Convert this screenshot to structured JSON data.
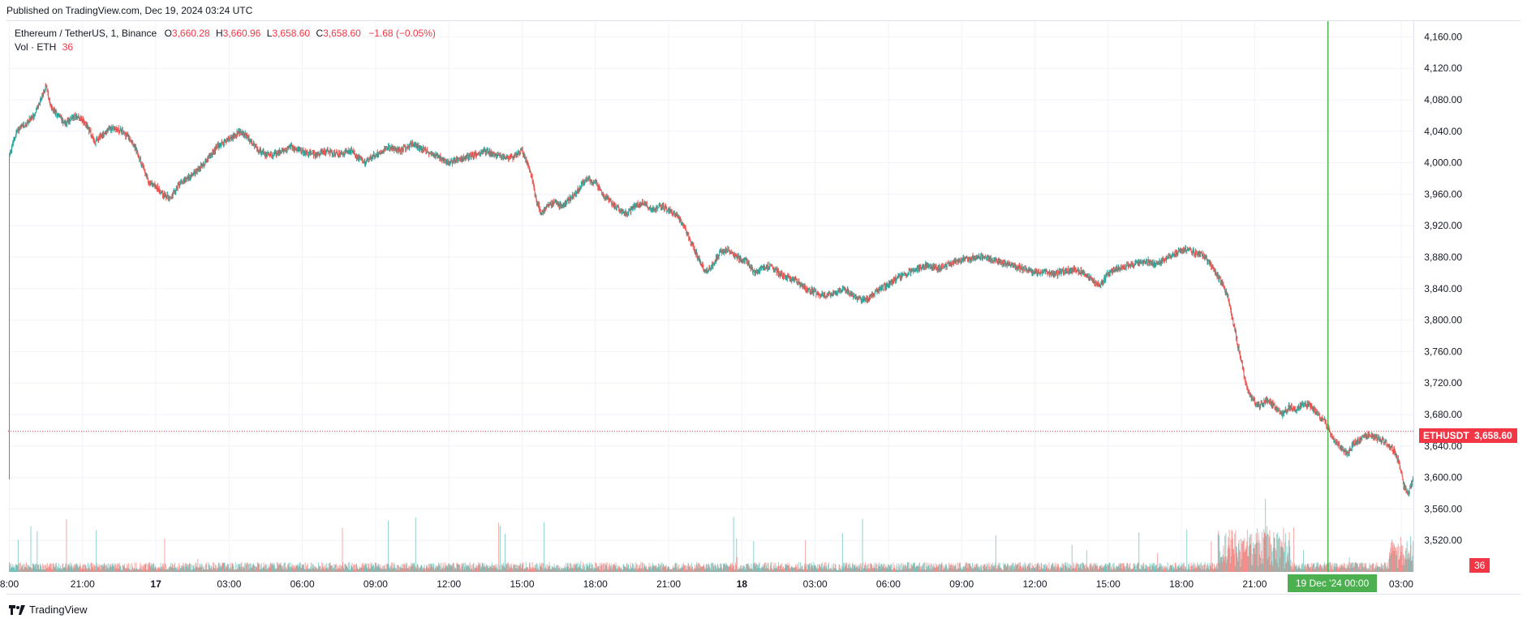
{
  "header": {
    "published": "Published on TradingView.com, Dec 19, 2024 03:24 UTC"
  },
  "legend": {
    "symbol": "Ethereum / TetherUS, 1, Binance",
    "o_label": "O",
    "o": "3,660.28",
    "h_label": "H",
    "h": "3,660.96",
    "l_label": "L",
    "l": "3,658.60",
    "c_label": "C",
    "c": "3,658.60",
    "change": "−1.68 (−0.05%)",
    "vol_label": "Vol · ETH",
    "vol": "36"
  },
  "last_price": {
    "ticker": "ETHUSDT",
    "price": "3,658.60",
    "volume_tag": "36"
  },
  "crosshair": {
    "time_label": "19 Dec '24  00:00"
  },
  "footer": {
    "brand": "TradingView"
  },
  "colors": {
    "up": "#26a69a",
    "down": "#ef5350",
    "accent": "#4caf50",
    "last": "#f23645"
  },
  "chart_data": {
    "type": "candlestick",
    "symbol": "Ethereum / TetherUS",
    "interval": "1",
    "exchange": "Binance",
    "ylim": [
      3480,
      4180
    ],
    "y_ticks": [
      {
        "value": 4160,
        "label": "4,160.00"
      },
      {
        "value": 4120,
        "label": "4,120.00"
      },
      {
        "value": 4080,
        "label": "4,080.00"
      },
      {
        "value": 4040,
        "label": "4,040.00"
      },
      {
        "value": 4000,
        "label": "4,000.00"
      },
      {
        "value": 3960,
        "label": "3,960.00"
      },
      {
        "value": 3920,
        "label": "3,920.00"
      },
      {
        "value": 3880,
        "label": "3,880.00"
      },
      {
        "value": 3840,
        "label": "3,840.00"
      },
      {
        "value": 3800,
        "label": "3,800.00"
      },
      {
        "value": 3760,
        "label": "3,760.00"
      },
      {
        "value": 3720,
        "label": "3,720.00"
      },
      {
        "value": 3680,
        "label": "3,680.00"
      },
      {
        "value": 3640,
        "label": "3,640.00"
      },
      {
        "value": 3600,
        "label": "3,600.00"
      },
      {
        "value": 3560,
        "label": "3,560.00"
      },
      {
        "value": 3520,
        "label": "3,520.00"
      }
    ],
    "x_ticks": [
      "8:00",
      "21:00",
      "17",
      "03:00",
      "06:00",
      "09:00",
      "12:00",
      "15:00",
      "18:00",
      "21:00",
      "18",
      "03:00",
      "06:00",
      "09:00",
      "12:00",
      "15:00",
      "18:00",
      "21:00",
      "00:00",
      "03:00"
    ],
    "x_tick_hours": [
      18,
      21,
      24,
      27,
      30,
      33,
      36,
      39,
      42,
      45,
      48,
      51,
      54,
      57,
      60,
      63,
      66,
      69,
      72,
      75
    ],
    "x_range_hours": [
      17.95,
      75.5
    ],
    "price_path": [
      [
        18.0,
        4010
      ],
      [
        18.3,
        4040
      ],
      [
        18.7,
        4050
      ],
      [
        19.0,
        4060
      ],
      [
        19.3,
        4080
      ],
      [
        19.5,
        4100
      ],
      [
        19.7,
        4070
      ],
      [
        20.0,
        4060
      ],
      [
        20.3,
        4050
      ],
      [
        20.7,
        4060
      ],
      [
        21.0,
        4055
      ],
      [
        21.3,
        4040
      ],
      [
        21.5,
        4025
      ],
      [
        21.8,
        4035
      ],
      [
        22.2,
        4045
      ],
      [
        22.6,
        4040
      ],
      [
        23.0,
        4030
      ],
      [
        23.4,
        4000
      ],
      [
        23.7,
        3975
      ],
      [
        24.0,
        3970
      ],
      [
        24.3,
        3960
      ],
      [
        24.6,
        3955
      ],
      [
        25.0,
        3975
      ],
      [
        25.5,
        3985
      ],
      [
        26.0,
        4000
      ],
      [
        26.5,
        4020
      ],
      [
        27.0,
        4030
      ],
      [
        27.5,
        4040
      ],
      [
        27.8,
        4030
      ],
      [
        28.2,
        4015
      ],
      [
        28.6,
        4010
      ],
      [
        29.0,
        4012
      ],
      [
        29.5,
        4020
      ],
      [
        30.0,
        4015
      ],
      [
        30.5,
        4010
      ],
      [
        31.0,
        4015
      ],
      [
        31.5,
        4010
      ],
      [
        32.0,
        4015
      ],
      [
        32.5,
        4000
      ],
      [
        33.0,
        4010
      ],
      [
        33.5,
        4020
      ],
      [
        34.0,
        4015
      ],
      [
        34.5,
        4025
      ],
      [
        35.0,
        4015
      ],
      [
        35.5,
        4010
      ],
      [
        36.0,
        4000
      ],
      [
        36.5,
        4005
      ],
      [
        37.0,
        4010
      ],
      [
        37.5,
        4015
      ],
      [
        38.0,
        4010
      ],
      [
        38.5,
        4005
      ],
      [
        39.0,
        4015
      ],
      [
        39.2,
        4000
      ],
      [
        39.4,
        3980
      ],
      [
        39.6,
        3950
      ],
      [
        39.8,
        3935
      ],
      [
        40.0,
        3945
      ],
      [
        40.3,
        3950
      ],
      [
        40.6,
        3945
      ],
      [
        41.0,
        3955
      ],
      [
        41.3,
        3965
      ],
      [
        41.6,
        3980
      ],
      [
        42.0,
        3975
      ],
      [
        42.3,
        3960
      ],
      [
        42.6,
        3950
      ],
      [
        43.0,
        3940
      ],
      [
        43.3,
        3935
      ],
      [
        43.6,
        3945
      ],
      [
        44.0,
        3950
      ],
      [
        44.3,
        3940
      ],
      [
        44.7,
        3945
      ],
      [
        45.0,
        3940
      ],
      [
        45.3,
        3935
      ],
      [
        45.6,
        3920
      ],
      [
        45.9,
        3900
      ],
      [
        46.2,
        3880
      ],
      [
        46.5,
        3860
      ],
      [
        46.8,
        3870
      ],
      [
        47.1,
        3885
      ],
      [
        47.4,
        3890
      ],
      [
        47.8,
        3880
      ],
      [
        48.2,
        3875
      ],
      [
        48.5,
        3860
      ],
      [
        48.8,
        3865
      ],
      [
        49.2,
        3870
      ],
      [
        49.5,
        3860
      ],
      [
        49.8,
        3855
      ],
      [
        50.2,
        3850
      ],
      [
        50.6,
        3840
      ],
      [
        51.0,
        3835
      ],
      [
        51.4,
        3830
      ],
      [
        51.8,
        3835
      ],
      [
        52.2,
        3840
      ],
      [
        52.6,
        3830
      ],
      [
        53.0,
        3825
      ],
      [
        53.3,
        3830
      ],
      [
        53.7,
        3840
      ],
      [
        54.0,
        3845
      ],
      [
        54.4,
        3855
      ],
      [
        54.8,
        3860
      ],
      [
        55.2,
        3865
      ],
      [
        55.6,
        3870
      ],
      [
        56.0,
        3865
      ],
      [
        56.4,
        3870
      ],
      [
        56.8,
        3875
      ],
      [
        57.2,
        3878
      ],
      [
        57.6,
        3880
      ],
      [
        58.0,
        3880
      ],
      [
        58.4,
        3876
      ],
      [
        58.8,
        3872
      ],
      [
        59.2,
        3868
      ],
      [
        59.6,
        3865
      ],
      [
        60.0,
        3860
      ],
      [
        60.4,
        3862
      ],
      [
        60.8,
        3858
      ],
      [
        61.2,
        3862
      ],
      [
        61.6,
        3864
      ],
      [
        62.0,
        3860
      ],
      [
        62.4,
        3850
      ],
      [
        62.7,
        3845
      ],
      [
        63.0,
        3860
      ],
      [
        63.4,
        3865
      ],
      [
        63.8,
        3870
      ],
      [
        64.2,
        3872
      ],
      [
        64.6,
        3875
      ],
      [
        65.0,
        3870
      ],
      [
        65.4,
        3880
      ],
      [
        65.8,
        3885
      ],
      [
        66.2,
        3890
      ],
      [
        66.6,
        3885
      ],
      [
        67.0,
        3880
      ],
      [
        67.3,
        3865
      ],
      [
        67.6,
        3850
      ],
      [
        67.9,
        3830
      ],
      [
        68.1,
        3800
      ],
      [
        68.3,
        3770
      ],
      [
        68.5,
        3740
      ],
      [
        68.7,
        3710
      ],
      [
        68.9,
        3700
      ],
      [
        69.2,
        3690
      ],
      [
        69.5,
        3700
      ],
      [
        69.8,
        3690
      ],
      [
        70.1,
        3680
      ],
      [
        70.4,
        3690
      ],
      [
        70.7,
        3685
      ],
      [
        71.0,
        3695
      ],
      [
        71.3,
        3690
      ],
      [
        71.6,
        3680
      ],
      [
        71.9,
        3670
      ],
      [
        72.2,
        3650
      ],
      [
        72.5,
        3640
      ],
      [
        72.8,
        3630
      ],
      [
        73.1,
        3645
      ],
      [
        73.4,
        3650
      ],
      [
        73.7,
        3655
      ],
      [
        74.0,
        3650
      ],
      [
        74.3,
        3645
      ],
      [
        74.6,
        3640
      ],
      [
        74.9,
        3620
      ],
      [
        75.1,
        3590
      ],
      [
        75.3,
        3580
      ],
      [
        75.5,
        3600
      ]
    ],
    "last_price": 3658.6,
    "crosshair_hour": 72.0
  }
}
